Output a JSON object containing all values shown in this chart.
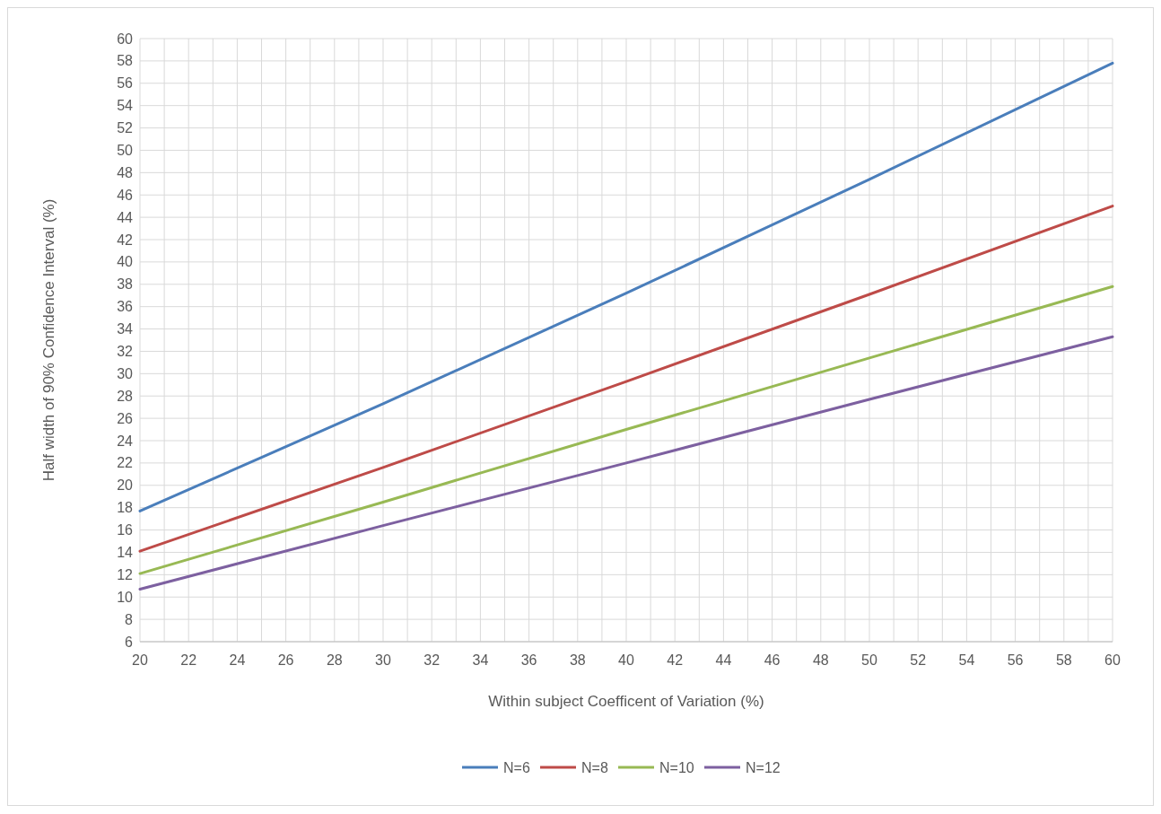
{
  "chart_data": {
    "type": "line",
    "xlabel": "Within subject Coefficent of Variation (%)",
    "ylabel": "Half width of 90% Confidence Interval (%)",
    "x": [
      20,
      30,
      40,
      50,
      60
    ],
    "series": [
      {
        "name": "N=6",
        "color": "#4a7ebb",
        "values": [
          17.7,
          27.3,
          37.2,
          47.4,
          57.8
        ]
      },
      {
        "name": "N=8",
        "color": "#be4b48",
        "values": [
          14.1,
          21.6,
          29.3,
          37.1,
          45.0
        ]
      },
      {
        "name": "N=10",
        "color": "#98b954",
        "values": [
          12.1,
          18.5,
          25.0,
          31.4,
          37.8
        ]
      },
      {
        "name": "N=12",
        "color": "#7d60a0",
        "values": [
          10.7,
          16.4,
          22.0,
          27.7,
          33.3
        ]
      }
    ],
    "xlim": [
      20,
      60
    ],
    "xticks": [
      20,
      {
        "value": 21,
        "label": null
      },
      22,
      {
        "value": 23,
        "label": null
      },
      24,
      {
        "value": 25,
        "label": null
      },
      26,
      {
        "value": 27,
        "label": null
      },
      28,
      {
        "value": 29,
        "label": null
      },
      30,
      {
        "value": 31,
        "label": null
      },
      32,
      {
        "value": 33,
        "label": null
      },
      34,
      {
        "value": 35,
        "label": null
      },
      36,
      {
        "value": 37,
        "label": null
      },
      38,
      {
        "value": 39,
        "label": null
      },
      40,
      {
        "value": 41,
        "label": null
      },
      42,
      {
        "value": 43,
        "label": null
      },
      44,
      {
        "value": 45,
        "label": null
      },
      46,
      {
        "value": 47,
        "label": null
      },
      48,
      {
        "value": 49,
        "label": null
      },
      50,
      {
        "value": 51,
        "label": null
      },
      52,
      {
        "value": 53,
        "label": null
      },
      54,
      {
        "value": 55,
        "label": null
      },
      56,
      {
        "value": 57,
        "label": null
      },
      58,
      {
        "value": 59,
        "label": null
      },
      60
    ],
    "ylim": [
      6,
      60
    ],
    "yticks": [
      6,
      8,
      10,
      12,
      14,
      16,
      18,
      20,
      22,
      24,
      26,
      28,
      30,
      32,
      34,
      36,
      38,
      40,
      42,
      44,
      46,
      48,
      50,
      52,
      54,
      56,
      58,
      60
    ],
    "grid": true,
    "legend": "bottom",
    "marker": "none",
    "line_style": "solid"
  }
}
